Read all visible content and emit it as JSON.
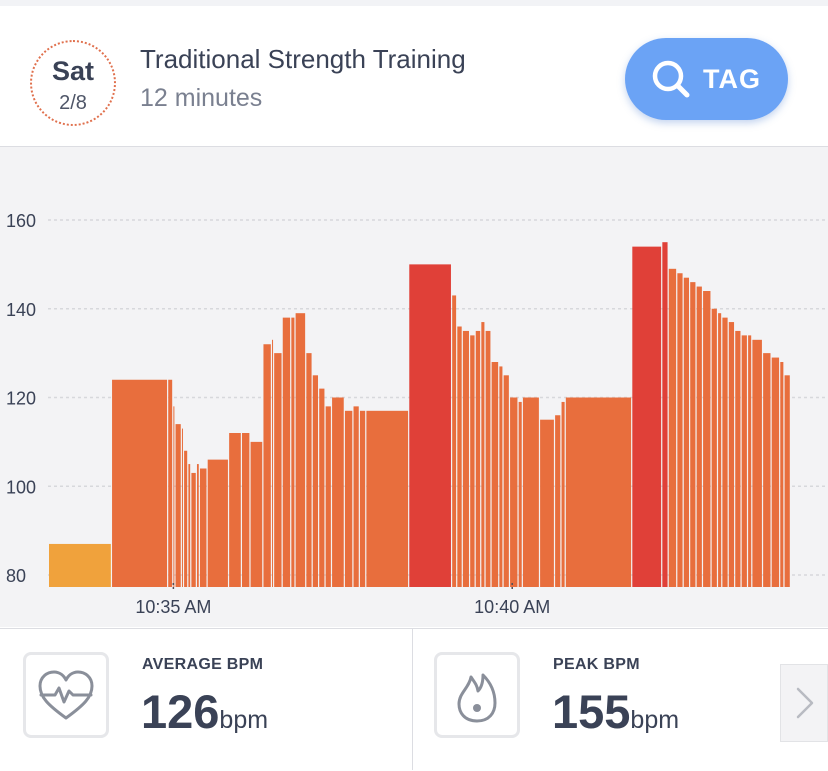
{
  "header": {
    "day": "Sat",
    "date": "2/8",
    "title": "Traditional Strength Training",
    "duration": "12 minutes",
    "tag_button": {
      "label": "TAG",
      "icon": "search-icon",
      "color": "#6ba3f5"
    }
  },
  "chart_data": {
    "type": "bar",
    "ylim": [
      77,
      170
    ],
    "y_ticks": [
      80,
      100,
      120,
      140,
      160
    ],
    "x_ticks": [
      {
        "label": "10:35 AM",
        "t": 33
      },
      {
        "label": "10:40 AM",
        "t": 40.9
      }
    ],
    "x_range": [
      30.1,
      47.4
    ],
    "grid": true,
    "colors": {
      "zone_low": "#f0a23c",
      "zone_mid": "#e86e3d",
      "zone_high": "#e04038"
    },
    "bars": [
      {
        "t0": 30.1,
        "t1": 31.57,
        "bpm": 87,
        "zone": "low"
      },
      {
        "t0": 31.57,
        "t1": 32.88,
        "bpm": 124,
        "zone": "mid"
      },
      {
        "t0": 32.88,
        "t1": 33.0,
        "bpm": 124,
        "zone": "mid"
      },
      {
        "t0": 33.0,
        "t1": 33.05,
        "bpm": 118,
        "zone": "mid"
      },
      {
        "t0": 33.05,
        "t1": 33.2,
        "bpm": 114,
        "zone": "mid"
      },
      {
        "t0": 33.2,
        "t1": 33.25,
        "bpm": 113,
        "zone": "mid"
      },
      {
        "t0": 33.25,
        "t1": 33.35,
        "bpm": 108,
        "zone": "mid"
      },
      {
        "t0": 33.35,
        "t1": 33.42,
        "bpm": 105,
        "zone": "mid"
      },
      {
        "t0": 33.42,
        "t1": 33.55,
        "bpm": 103,
        "zone": "mid"
      },
      {
        "t0": 33.55,
        "t1": 33.62,
        "bpm": 105,
        "zone": "mid"
      },
      {
        "t0": 33.62,
        "t1": 33.8,
        "bpm": 104,
        "zone": "mid"
      },
      {
        "t0": 33.8,
        "t1": 34.3,
        "bpm": 106,
        "zone": "mid"
      },
      {
        "t0": 34.3,
        "t1": 34.6,
        "bpm": 112,
        "zone": "mid"
      },
      {
        "t0": 34.6,
        "t1": 34.8,
        "bpm": 112,
        "zone": "mid"
      },
      {
        "t0": 34.8,
        "t1": 35.1,
        "bpm": 110,
        "zone": "mid"
      },
      {
        "t0": 35.1,
        "t1": 35.3,
        "bpm": 132,
        "zone": "mid"
      },
      {
        "t0": 35.3,
        "t1": 35.35,
        "bpm": 133,
        "zone": "mid"
      },
      {
        "t0": 35.35,
        "t1": 35.55,
        "bpm": 130,
        "zone": "mid"
      },
      {
        "t0": 35.55,
        "t1": 35.75,
        "bpm": 138,
        "zone": "mid"
      },
      {
        "t0": 35.75,
        "t1": 35.85,
        "bpm": 138,
        "zone": "mid"
      },
      {
        "t0": 35.85,
        "t1": 36.1,
        "bpm": 139,
        "zone": "mid"
      },
      {
        "t0": 36.1,
        "t1": 36.25,
        "bpm": 130,
        "zone": "mid"
      },
      {
        "t0": 36.25,
        "t1": 36.4,
        "bpm": 125,
        "zone": "mid"
      },
      {
        "t0": 36.4,
        "t1": 36.55,
        "bpm": 122,
        "zone": "mid"
      },
      {
        "t0": 36.55,
        "t1": 36.7,
        "bpm": 118,
        "zone": "mid"
      },
      {
        "t0": 36.7,
        "t1": 37.0,
        "bpm": 120,
        "zone": "mid"
      },
      {
        "t0": 37.0,
        "t1": 37.2,
        "bpm": 117,
        "zone": "mid"
      },
      {
        "t0": 37.2,
        "t1": 37.35,
        "bpm": 118,
        "zone": "mid"
      },
      {
        "t0": 37.35,
        "t1": 37.5,
        "bpm": 117,
        "zone": "mid"
      },
      {
        "t0": 37.5,
        "t1": 38.5,
        "bpm": 117,
        "zone": "mid"
      },
      {
        "t0": 38.5,
        "t1": 39.5,
        "bpm": 150,
        "zone": "high"
      },
      {
        "t0": 39.5,
        "t1": 39.62,
        "bpm": 143,
        "zone": "mid"
      },
      {
        "t0": 39.62,
        "t1": 39.75,
        "bpm": 136,
        "zone": "mid"
      },
      {
        "t0": 39.75,
        "t1": 39.92,
        "bpm": 135,
        "zone": "mid"
      },
      {
        "t0": 39.92,
        "t1": 40.05,
        "bpm": 134,
        "zone": "mid"
      },
      {
        "t0": 40.05,
        "t1": 40.18,
        "bpm": 135,
        "zone": "mid"
      },
      {
        "t0": 40.18,
        "t1": 40.28,
        "bpm": 137,
        "zone": "mid"
      },
      {
        "t0": 40.28,
        "t1": 40.42,
        "bpm": 135,
        "zone": "mid"
      },
      {
        "t0": 40.42,
        "t1": 40.6,
        "bpm": 128,
        "zone": "mid"
      },
      {
        "t0": 40.6,
        "t1": 40.7,
        "bpm": 127,
        "zone": "mid"
      },
      {
        "t0": 40.7,
        "t1": 40.85,
        "bpm": 125,
        "zone": "mid"
      },
      {
        "t0": 40.85,
        "t1": 41.05,
        "bpm": 120,
        "zone": "mid"
      },
      {
        "t0": 41.05,
        "t1": 41.15,
        "bpm": 119,
        "zone": "mid"
      },
      {
        "t0": 41.15,
        "t1": 41.55,
        "bpm": 120,
        "zone": "mid"
      },
      {
        "t0": 41.55,
        "t1": 41.9,
        "bpm": 115,
        "zone": "mid"
      },
      {
        "t0": 41.9,
        "t1": 42.05,
        "bpm": 116,
        "zone": "mid"
      },
      {
        "t0": 42.05,
        "t1": 42.15,
        "bpm": 119,
        "zone": "mid"
      },
      {
        "t0": 42.15,
        "t1": 43.7,
        "bpm": 120,
        "zone": "mid"
      },
      {
        "t0": 43.7,
        "t1": 44.4,
        "bpm": 154,
        "zone": "high"
      },
      {
        "t0": 44.4,
        "t1": 44.55,
        "bpm": 155,
        "zone": "high"
      },
      {
        "t0": 44.55,
        "t1": 44.75,
        "bpm": 149,
        "zone": "mid"
      },
      {
        "t0": 44.75,
        "t1": 44.9,
        "bpm": 148,
        "zone": "mid"
      },
      {
        "t0": 44.9,
        "t1": 45.05,
        "bpm": 147,
        "zone": "mid"
      },
      {
        "t0": 45.05,
        "t1": 45.2,
        "bpm": 146,
        "zone": "mid"
      },
      {
        "t0": 45.2,
        "t1": 45.35,
        "bpm": 145,
        "zone": "mid"
      },
      {
        "t0": 45.35,
        "t1": 45.55,
        "bpm": 144,
        "zone": "mid"
      },
      {
        "t0": 45.55,
        "t1": 45.7,
        "bpm": 140,
        "zone": "mid"
      },
      {
        "t0": 45.7,
        "t1": 45.8,
        "bpm": 139,
        "zone": "mid"
      },
      {
        "t0": 45.8,
        "t1": 45.95,
        "bpm": 138,
        "zone": "mid"
      },
      {
        "t0": 45.95,
        "t1": 46.1,
        "bpm": 137,
        "zone": "mid"
      },
      {
        "t0": 46.1,
        "t1": 46.25,
        "bpm": 135,
        "zone": "mid"
      },
      {
        "t0": 46.25,
        "t1": 46.4,
        "bpm": 134,
        "zone": "mid"
      },
      {
        "t0": 46.4,
        "t1": 46.5,
        "bpm": 134,
        "zone": "mid"
      },
      {
        "t0": 46.5,
        "t1": 46.75,
        "bpm": 133,
        "zone": "mid"
      },
      {
        "t0": 46.75,
        "t1": 46.95,
        "bpm": 130,
        "zone": "mid"
      },
      {
        "t0": 46.95,
        "t1": 47.15,
        "bpm": 129,
        "zone": "mid"
      },
      {
        "t0": 47.15,
        "t1": 47.25,
        "bpm": 128,
        "zone": "mid"
      },
      {
        "t0": 47.25,
        "t1": 47.4,
        "bpm": 125,
        "zone": "mid"
      }
    ]
  },
  "stats": {
    "average": {
      "label": "AVERAGE BPM",
      "value": "126",
      "unit": "bpm",
      "icon": "heart-pulse-icon"
    },
    "peak": {
      "label": "PEAK BPM",
      "value": "155",
      "unit": "bpm",
      "icon": "flame-icon"
    }
  },
  "next_icon": "chevron-right-icon"
}
